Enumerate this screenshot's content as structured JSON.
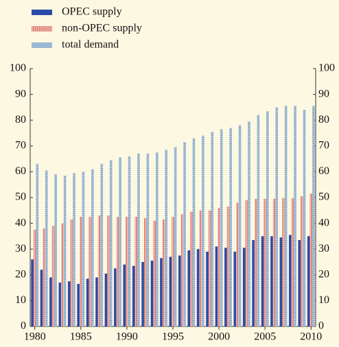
{
  "chart_data": {
    "type": "bar",
    "x": [
      1980,
      1981,
      1982,
      1983,
      1984,
      1985,
      1986,
      1987,
      1988,
      1989,
      1990,
      1991,
      1992,
      1993,
      1994,
      1995,
      1996,
      1997,
      1998,
      1999,
      2000,
      2001,
      2002,
      2003,
      2004,
      2005,
      2006,
      2007,
      2008,
      2009,
      2010
    ],
    "series": [
      {
        "name": "OPEC supply",
        "color": "#2b4aa8",
        "hatch": null,
        "values": [
          26,
          22,
          19,
          17,
          17.5,
          16.5,
          18.5,
          19,
          20.5,
          22.5,
          24,
          23.5,
          25,
          25.5,
          26.5,
          27,
          27.5,
          29.5,
          30,
          29,
          31,
          30.5,
          29,
          30.5,
          33.5,
          35,
          35,
          34.5,
          35.5,
          33.5,
          35
        ]
      },
      {
        "name": "non-OPEC supply",
        "color": "#e0867a",
        "hatch": "vertical",
        "values": [
          37.5,
          38,
          39,
          40,
          41.5,
          42.5,
          42.5,
          43,
          43,
          42.5,
          42.5,
          42.5,
          42,
          41,
          41.5,
          42.5,
          43.5,
          44.5,
          45,
          45,
          46,
          46.5,
          48,
          49,
          49.5,
          49.5,
          49.5,
          49.8,
          49.8,
          50.5,
          51.5
        ]
      },
      {
        "name": "total demand",
        "color": "#a9c6dd",
        "hatch": "horizontal",
        "values": [
          63,
          60.5,
          59,
          58.5,
          59.5,
          60,
          61,
          63,
          64.5,
          65.5,
          66,
          67,
          67,
          67.5,
          68.5,
          69.5,
          71.5,
          73,
          74,
          75.5,
          76.5,
          77,
          78,
          79.5,
          82,
          83.5,
          85,
          85.5,
          85.5,
          84,
          85.5
        ]
      }
    ],
    "xlim": [
      1979.5,
      2010.5
    ],
    "xticks": [
      1980,
      1985,
      1990,
      1995,
      2000,
      2005,
      2010
    ],
    "ylim": [
      0,
      100
    ],
    "yticks": [
      0,
      10,
      20,
      30,
      40,
      50,
      60,
      70,
      80,
      90,
      100
    ],
    "y2lim": [
      0,
      100
    ],
    "y2ticks": [
      0,
      10,
      20,
      30,
      40,
      50,
      60,
      70,
      80,
      90,
      100
    ]
  }
}
